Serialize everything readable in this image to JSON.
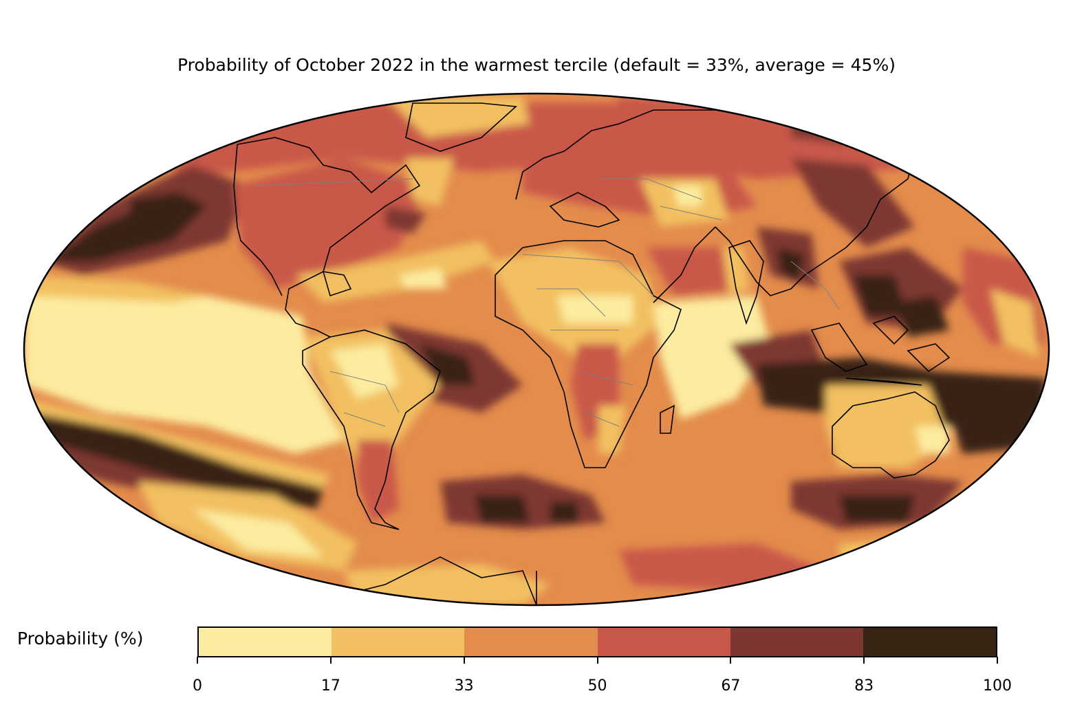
{
  "title": "Probability of October 2022 in the warmest tercile (default = 33%, average = 45%)",
  "colorbar": {
    "label": "Probability (%)",
    "ticks": [
      "0",
      "17",
      "33",
      "50",
      "67",
      "83",
      "100"
    ],
    "colors": [
      "#fcec9f",
      "#f2c060",
      "#e38c4c",
      "#c9584a",
      "#7e3730",
      "#372413"
    ]
  },
  "map": {
    "projection": "Mollweide",
    "ocean_base_color": "#e38c4c",
    "coastline_color": "#000000",
    "border_color": "#808080"
  }
}
